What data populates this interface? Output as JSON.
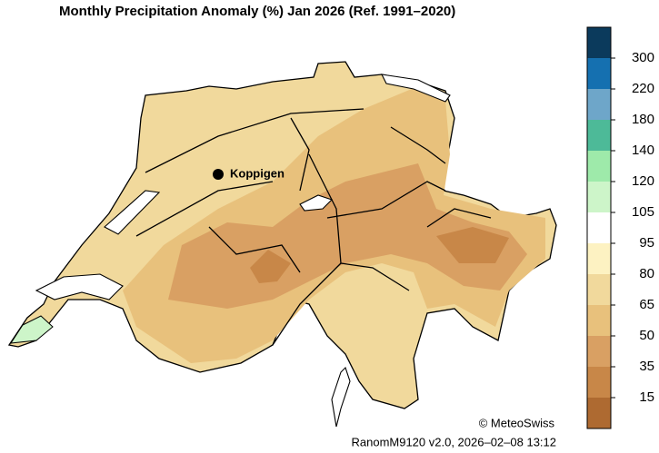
{
  "header": {
    "title": "Monthly Precipitation Anomaly (%) Jan 2026  (Ref. 1991–2020)"
  },
  "map": {
    "stations": [
      {
        "label": "Koppigen"
      }
    ],
    "copyright": "© MeteoSwiss",
    "footer": "RanomM9120 v2.0, 2026–02–08 13:12"
  },
  "colorbar": {
    "colors": [
      "#0b3a5c",
      "#1570b0",
      "#6ea6c9",
      "#4dba98",
      "#9eeaaa",
      "#cdf5c9",
      "#ffffff",
      "#fdf2c2",
      "#f1d99c",
      "#e8c17c",
      "#d9a063",
      "#c88748",
      "#ae6a31"
    ],
    "labels": [
      "300",
      "220",
      "180",
      "140",
      "120",
      "105",
      "95",
      "80",
      "65",
      "50",
      "35",
      "15"
    ]
  }
}
